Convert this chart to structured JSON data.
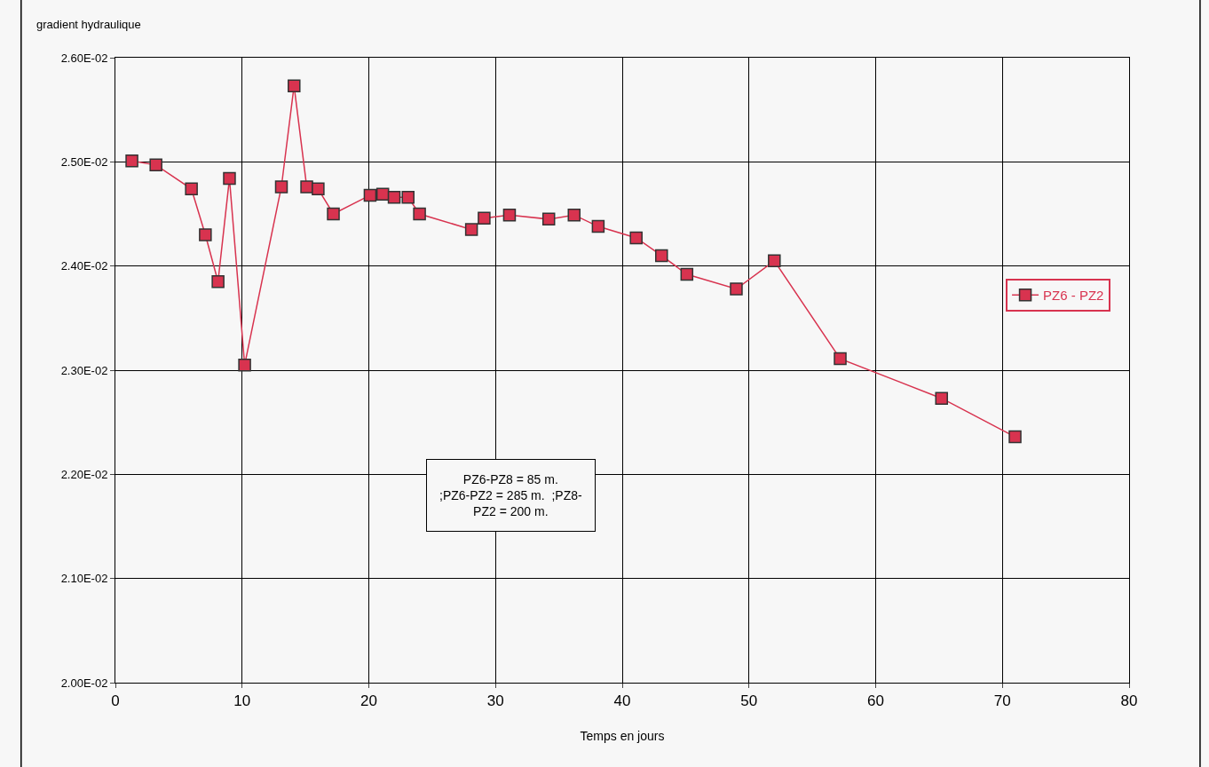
{
  "chart_data": {
    "type": "line",
    "ylabel": "gradient hydraulique",
    "xlabel": "Temps en jours",
    "x": [
      1.3,
      3.2,
      6.0,
      7.1,
      8.1,
      9.0,
      10.2,
      13.1,
      14.1,
      15.1,
      16.0,
      17.2,
      20.1,
      21.1,
      22.0,
      23.1,
      24.0,
      28.1,
      29.1,
      31.1,
      34.2,
      36.2,
      38.1,
      41.1,
      43.1,
      45.1,
      49.0,
      52.0,
      57.2,
      65.2,
      71.0
    ],
    "series": [
      {
        "name": "PZ6 - PZ2",
        "color": "#d8334f",
        "values": [
          0.02501,
          0.02497,
          0.02474,
          0.0243,
          0.02385,
          0.02484,
          0.02305,
          0.02476,
          0.02573,
          0.02476,
          0.02474,
          0.0245,
          0.02468,
          0.02469,
          0.02466,
          0.02466,
          0.0245,
          0.02435,
          0.02446,
          0.02449,
          0.02445,
          0.02449,
          0.02438,
          0.02427,
          0.0241,
          0.02392,
          0.02378,
          0.02405,
          0.02311,
          0.02273,
          0.02236
        ]
      }
    ],
    "xlim": [
      0,
      80
    ],
    "xticks": [
      0,
      10,
      20,
      30,
      40,
      50,
      60,
      70,
      80
    ],
    "ylim": [
      0.02,
      0.026
    ],
    "yticks": [
      {
        "value": 0.02,
        "label": "2.00E-02"
      },
      {
        "value": 0.021,
        "label": "2.10E-02"
      },
      {
        "value": 0.022,
        "label": "2.20E-02"
      },
      {
        "value": 0.023,
        "label": "2.30E-02"
      },
      {
        "value": 0.024,
        "label": "2.40E-02"
      },
      {
        "value": 0.025,
        "label": "2.50E-02"
      },
      {
        "value": 0.026,
        "label": "2.60E-02"
      }
    ],
    "annotations": [
      "PZ6-PZ8 = 85 m.\n;PZ6-PZ2 = 285 m.  ;PZ8-\nPZ2 = 200 m."
    ],
    "grid": true,
    "legend": "right",
    "marker": "square",
    "line_style": "solid"
  }
}
